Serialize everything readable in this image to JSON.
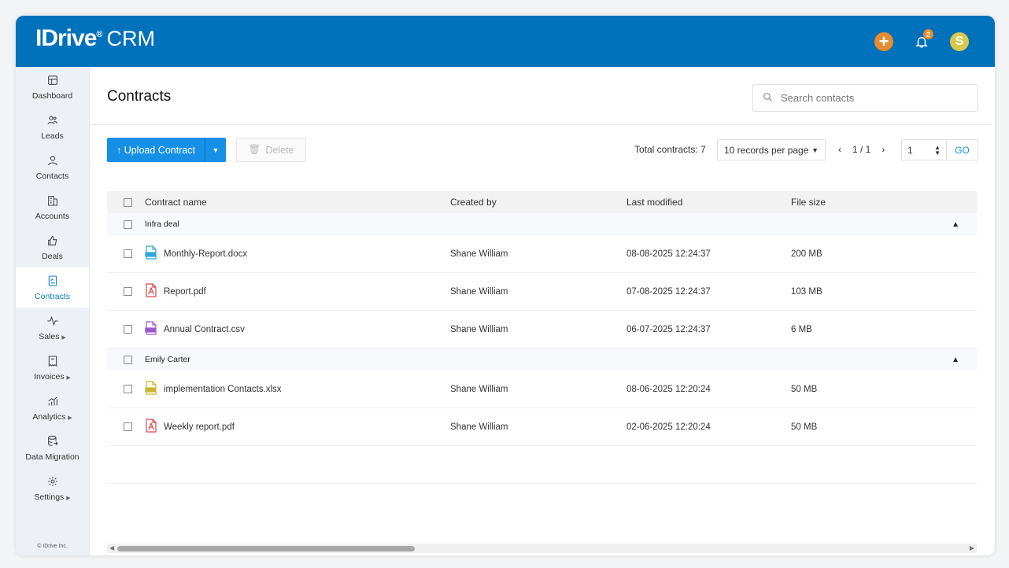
{
  "brand": {
    "logo": "IDrive",
    "product": "CRM"
  },
  "topbar": {
    "notifications": "2",
    "avatar": "S",
    "accent": "#0072bc"
  },
  "sidebar": {
    "items": [
      {
        "label": "Dashboard",
        "icon": "dashboard-icon"
      },
      {
        "label": "Leads",
        "icon": "leads-icon"
      },
      {
        "label": "Contacts",
        "icon": "contacts-icon"
      },
      {
        "label": "Accounts",
        "icon": "accounts-icon"
      },
      {
        "label": "Deals",
        "icon": "thumbs-up-icon"
      },
      {
        "label": "Contracts",
        "icon": "contracts-icon",
        "active": true
      },
      {
        "label": "Sales",
        "icon": "pulse-icon",
        "submenu": true
      },
      {
        "label": "Invoices",
        "icon": "invoice-icon",
        "submenu": true
      },
      {
        "label": "Analytics",
        "icon": "analytics-icon",
        "submenu": true
      },
      {
        "label": "Data Migration",
        "icon": "database-icon"
      },
      {
        "label": "Settings",
        "icon": "gear-icon",
        "submenu": true
      }
    ],
    "copyright": "© IDrive Inc."
  },
  "main": {
    "title": "Contracts",
    "search_placeholder": "Search contacts",
    "upload_label": "Upload Contract",
    "delete_label": "Delete",
    "total": "Total contracts: 7",
    "records_per_page": "10 records per page",
    "page": "1 / 1",
    "goto_value": "1",
    "go_label": "GO"
  },
  "table": {
    "columns": [
      "Contract name",
      "Created by",
      "Last modified",
      "File size"
    ],
    "groups": [
      {
        "name": "Infra deal",
        "rows": [
          {
            "name": "Monthly-Report.docx",
            "type": "doc",
            "created_by": "Shane William",
            "modified": "08-08-2025 12:24:37",
            "size": "200 MB"
          },
          {
            "name": "Report.pdf",
            "type": "pdf",
            "created_by": "Shane William",
            "modified": "07-08-2025 12:24:37",
            "size": "103 MB"
          },
          {
            "name": "Annual Contract.csv",
            "type": "csv",
            "created_by": "Shane William",
            "modified": "06-07-2025 12:24:37",
            "size": "6 MB"
          }
        ]
      },
      {
        "name": "Emily Carter",
        "rows": [
          {
            "name": "implementation Contacts.xlsx",
            "type": "xls",
            "created_by": "Shane William",
            "modified": "08-06-2025 12:20:24",
            "size": "50 MB"
          },
          {
            "name": "Weekly report.pdf",
            "type": "pdf",
            "created_by": "Shane William",
            "modified": "02-06-2025 12:20:24",
            "size": "50 MB"
          }
        ]
      }
    ]
  }
}
